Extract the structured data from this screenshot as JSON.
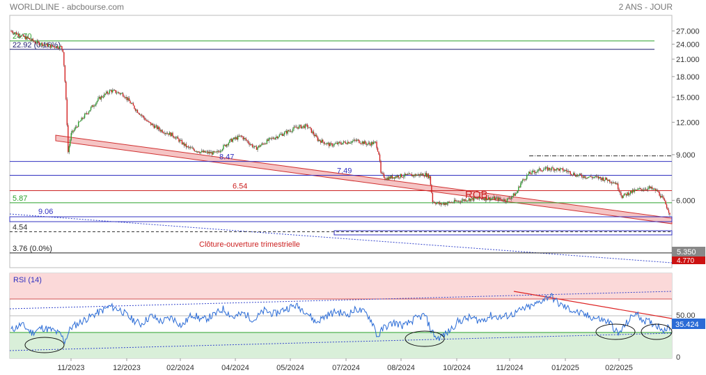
{
  "header": {
    "instrument": "WORLDLINE - abcbourse.com",
    "period": "2 ANS - JOUR"
  },
  "chart_data": [
    {
      "type": "candlestick",
      "title": "WORLDLINE - abcbourse.com",
      "ylim": [
        3.3,
        31.0
      ],
      "y_scale": "log",
      "y_ticks": [
        "27.000",
        "24.000",
        "21.000",
        "18.000",
        "15.000",
        "12.000",
        "9.000",
        "6.000"
      ],
      "x_ticks": [
        "11/2023",
        "12/2023",
        "02/2024",
        "04/2024",
        "05/2024",
        "07/2024",
        "08/2024",
        "10/2024",
        "11/2024",
        "01/2025",
        "02/2025"
      ],
      "price_path": [
        [
          0,
          27.0
        ],
        [
          12,
          25.6
        ],
        [
          25,
          24.3
        ],
        [
          38,
          23.6
        ],
        [
          48,
          23.4
        ],
        [
          50,
          22.7
        ],
        [
          53,
          14.5
        ],
        [
          55,
          9.2
        ],
        [
          58,
          10.8
        ],
        [
          66,
          12.0
        ],
        [
          75,
          13.3
        ],
        [
          85,
          14.8
        ],
        [
          96,
          15.9
        ],
        [
          108,
          15.4
        ],
        [
          120,
          13.5
        ],
        [
          132,
          12.0
        ],
        [
          144,
          11.2
        ],
        [
          156,
          10.7
        ],
        [
          170,
          9.6
        ],
        [
          184,
          9.2
        ],
        [
          198,
          9.1
        ],
        [
          212,
          10.2
        ],
        [
          222,
          10.6
        ],
        [
          236,
          9.5
        ],
        [
          250,
          10.3
        ],
        [
          264,
          10.9
        ],
        [
          276,
          11.5
        ],
        [
          286,
          11.6
        ],
        [
          296,
          10.3
        ],
        [
          308,
          9.8
        ],
        [
          320,
          10.0
        ],
        [
          334,
          10.2
        ],
        [
          344,
          9.9
        ],
        [
          352,
          10.0
        ],
        [
          355,
          9.1
        ],
        [
          357,
          7.6
        ],
        [
          362,
          7.3
        ],
        [
          374,
          7.45
        ],
        [
          388,
          7.5
        ],
        [
          400,
          7.55
        ],
        [
          404,
          7.4
        ],
        [
          407,
          5.95
        ],
        [
          414,
          5.8
        ],
        [
          426,
          5.9
        ],
        [
          440,
          6.05
        ],
        [
          454,
          6.1
        ],
        [
          466,
          6.1
        ],
        [
          478,
          6.0
        ],
        [
          488,
          6.4
        ],
        [
          492,
          7.0
        ],
        [
          500,
          7.6
        ],
        [
          512,
          7.9
        ],
        [
          524,
          7.95
        ],
        [
          536,
          7.8
        ],
        [
          546,
          7.5
        ],
        [
          556,
          7.4
        ],
        [
          566,
          7.35
        ],
        [
          576,
          7.2
        ],
        [
          584,
          7.0
        ],
        [
          590,
          6.2
        ],
        [
          596,
          6.4
        ],
        [
          606,
          6.6
        ],
        [
          616,
          6.7
        ],
        [
          624,
          6.5
        ],
        [
          630,
          6.0
        ],
        [
          636,
          5.35
        ]
      ],
      "last_price": "5.350",
      "previous_low": "4.770",
      "levels": [
        {
          "value": 24.7,
          "label": "24.70",
          "color": "#2aa02a",
          "style": "solid"
        },
        {
          "value": 22.92,
          "label": "22.92 (0.16%)",
          "color": "#1a1a6e",
          "style": "solid"
        },
        {
          "value": 8.47,
          "label": "8.47",
          "color": "#3030c0",
          "style": "solid"
        },
        {
          "value": 8.9,
          "label": "",
          "color": "#222222",
          "style": "dashdot"
        },
        {
          "value": 7.49,
          "label": "7.49",
          "color": "#3030c0",
          "style": "solid"
        },
        {
          "value": 6.54,
          "label": "6.54",
          "color": "#cc2222",
          "style": "solid"
        },
        {
          "value": 5.87,
          "label": "5.87",
          "color": "#2aa02a",
          "style": "solid"
        },
        {
          "value": 4.54,
          "label": "4.54",
          "color": "#333333",
          "style": "dashed"
        },
        {
          "value": 3.76,
          "label": "3.76 (0.0%)",
          "color": "#222222",
          "style": "solid"
        }
      ],
      "point_labels": [
        {
          "x": 55,
          "y": 9.06,
          "label": "9.06"
        }
      ],
      "annotations": [
        {
          "text": "ROB",
          "color": "#cc2222"
        },
        {
          "text": "Clôture-ouverture trimestrielle",
          "color": "#cc2222"
        }
      ]
    },
    {
      "type": "line",
      "title": "RSI (14)",
      "ylim": [
        0,
        100
      ],
      "y_ticks": [
        "50.00",
        "0"
      ],
      "last_value": "35.424",
      "series": [
        {
          "color": "#2a6bd6",
          "values": [
            [
              0,
              33
            ],
            [
              10,
              40
            ],
            [
              20,
              30
            ],
            [
              30,
              36
            ],
            [
              40,
              33
            ],
            [
              48,
              28
            ],
            [
              52,
              20
            ],
            [
              58,
              36
            ],
            [
              68,
              43
            ],
            [
              80,
              51
            ],
            [
              96,
              61
            ],
            [
              106,
              57
            ],
            [
              116,
              47
            ],
            [
              126,
              40
            ],
            [
              136,
              50
            ],
            [
              146,
              43
            ],
            [
              156,
              48
            ],
            [
              166,
              38
            ],
            [
              176,
              52
            ],
            [
              186,
              45
            ],
            [
              196,
              50
            ],
            [
              206,
              58
            ],
            [
              216,
              48
            ],
            [
              226,
              53
            ],
            [
              236,
              45
            ],
            [
              246,
              56
            ],
            [
              256,
              52
            ],
            [
              266,
              58
            ],
            [
              276,
              62
            ],
            [
              286,
              56
            ],
            [
              296,
              42
            ],
            [
              306,
              50
            ],
            [
              316,
              55
            ],
            [
              326,
              51
            ],
            [
              336,
              58
            ],
            [
              346,
              52
            ],
            [
              352,
              40
            ],
            [
              356,
              25
            ],
            [
              362,
              36
            ],
            [
              372,
              42
            ],
            [
              382,
              38
            ],
            [
              392,
              46
            ],
            [
              402,
              51
            ],
            [
              408,
              33
            ],
            [
              414,
              23
            ],
            [
              424,
              30
            ],
            [
              434,
              43
            ],
            [
              446,
              48
            ],
            [
              456,
              44
            ],
            [
              466,
              50
            ],
            [
              476,
              48
            ],
            [
              488,
              52
            ],
            [
              498,
              58
            ],
            [
              508,
              62
            ],
            [
              518,
              70
            ],
            [
              524,
              74
            ],
            [
              532,
              64
            ],
            [
              542,
              58
            ],
            [
              552,
              53
            ],
            [
              562,
              49
            ],
            [
              572,
              46
            ],
            [
              582,
              42
            ],
            [
              590,
              28
            ],
            [
              596,
              38
            ],
            [
              606,
              53
            ],
            [
              616,
              44
            ],
            [
              626,
              40
            ],
            [
              634,
              34
            ],
            [
              640,
              36
            ]
          ]
        }
      ]
    }
  ]
}
